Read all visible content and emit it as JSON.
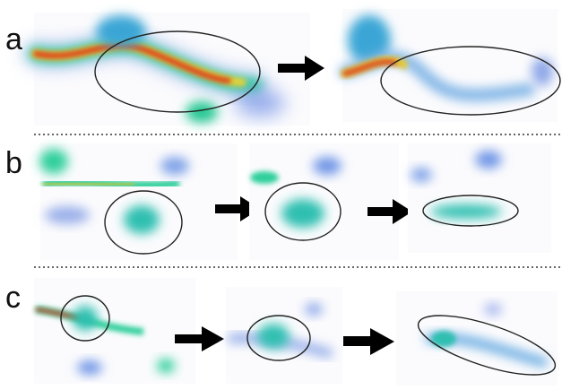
{
  "panels": [
    {
      "label": "a"
    },
    {
      "label": "b"
    },
    {
      "label": "c"
    }
  ]
}
